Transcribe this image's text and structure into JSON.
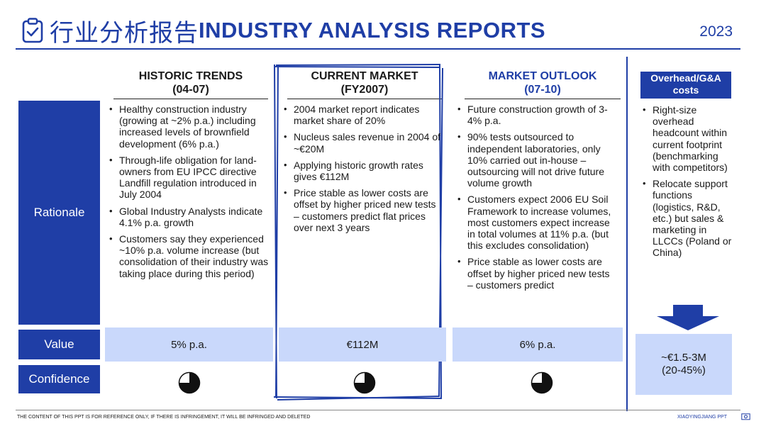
{
  "header": {
    "title_zh": "行业分析报告",
    "title_en": "INDUSTRY ANALYSIS REPORTS",
    "year": "2023"
  },
  "columns": [
    {
      "title": "HISTORIC TRENDS",
      "subtitle": "(04-07)"
    },
    {
      "title": "CURRENT MARKET",
      "subtitle": "(FY2007)"
    },
    {
      "title": "MARKET OUTLOOK",
      "subtitle": "(07-10)"
    }
  ],
  "overhead": {
    "title": "Overhead/G&A costs",
    "bullets": [
      "Right-size overhead headcount within current footprint (benchmarking with competitors)",
      "Relocate support functions (logistics, R&D, etc.) but sales & marketing in LLCCs (Poland or China)"
    ],
    "value": "~€1.5-3M\n(20-45%)"
  },
  "rows": {
    "rationale": "Rationale",
    "value": "Value",
    "confidence": "Confidence"
  },
  "rationale": {
    "historic": [
      "Healthy construction industry (growing at ~2% p.a.) including increased levels of brownfield development (6% p.a.)",
      "Through-life obligation for land-owners from EU IPCC directive Landfill regulation introduced in July 2004",
      "Global Industry Analysts indicate 4.1% p.a. growth",
      "Customers say they experienced ~10% p.a. volume increase (but consolidation of their industry was taking place during this period)"
    ],
    "current": [
      "2004 market report indicates market share of 20%",
      "Nucleus sales revenue in 2004 of ~€20M",
      "Applying historic growth rates gives €112M",
      "Price stable as lower costs are offset by higher priced new tests – customers predict flat prices over next 3 years"
    ],
    "outlook": [
      "Future construction growth of 3-4% p.a.",
      "90% tests outsourced to independent laboratories, only 10% carried out in-house – outsourcing will not drive future volume growth",
      "Customers expect 2006 EU Soil Framework to increase volumes, most customers expect increase in total volumes at 11% p.a. (but this excludes consolidation)",
      "Price stable as lower costs are offset by higher priced new tests – customers predict"
    ]
  },
  "values": {
    "historic": "5% p.a.",
    "current": "€112M",
    "outlook": "6% p.a."
  },
  "confidence": {
    "historic": 0.75,
    "current": 0.75,
    "outlook": 0.75
  },
  "footer": {
    "left": "THE CONTENT OF THIS PPT IS FOR REFERENCE ONLY, IF THERE IS INFRINGEMENT, IT WILL BE INFRINGED AND DELETED",
    "right": "XIAOYINGJIANG PPT"
  },
  "colors": {
    "brand_blue": "#1f3ea6",
    "value_fill": "#c9d8fb"
  }
}
